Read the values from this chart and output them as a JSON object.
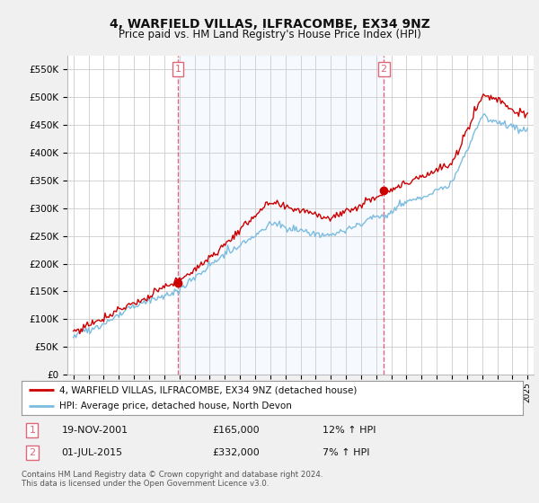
{
  "title1": "4, WARFIELD VILLAS, ILFRACOMBE, EX34 9NZ",
  "title2": "Price paid vs. HM Land Registry's House Price Index (HPI)",
  "legend_line1": "4, WARFIELD VILLAS, ILFRACOMBE, EX34 9NZ (detached house)",
  "legend_line2": "HPI: Average price, detached house, North Devon",
  "transaction1_date": "19-NOV-2001",
  "transaction1_price": "£165,000",
  "transaction1_hpi": "12% ↑ HPI",
  "transaction2_date": "01-JUL-2015",
  "transaction2_price": "£332,000",
  "transaction2_hpi": "7% ↑ HPI",
  "footer": "Contains HM Land Registry data © Crown copyright and database right 2024.\nThis data is licensed under the Open Government Licence v3.0.",
  "sale1_year": 2001.89,
  "sale1_price": 165000,
  "sale2_year": 2015.5,
  "sale2_price": 332000,
  "hpi_color": "#7bbce0",
  "price_color": "#cc0000",
  "vline_color": "#dd6677",
  "shade_color": "#ddeeff",
  "ylim": [
    0,
    575000
  ],
  "yticks": [
    0,
    50000,
    100000,
    150000,
    200000,
    250000,
    300000,
    350000,
    400000,
    450000,
    500000,
    550000
  ],
  "bg_color": "#f0f0f0",
  "plot_bg": "#ffffff"
}
